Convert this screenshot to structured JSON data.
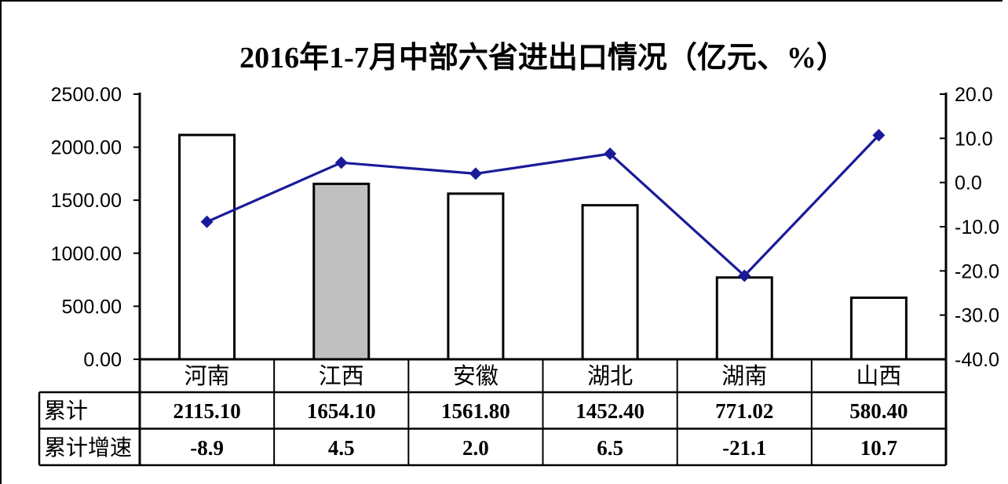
{
  "chart_data": {
    "type": "bar",
    "combo": "bar+line",
    "title": "2016年1-7月中部六省进出口情况（亿元、%）",
    "categories": [
      "河南",
      "江西",
      "安徽",
      "湖北",
      "湖南",
      "山西"
    ],
    "series": [
      {
        "name": "累计",
        "type": "bar",
        "axis": "left",
        "values": [
          2115.1,
          1654.1,
          1561.8,
          1452.4,
          771.02,
          580.4
        ]
      },
      {
        "name": "累计增速",
        "type": "line",
        "axis": "right",
        "values": [
          -8.9,
          4.5,
          2.0,
          6.5,
          -21.1,
          10.7
        ]
      }
    ],
    "left_axis": {
      "min": 0,
      "max": 2500,
      "step": 500,
      "tick_labels": [
        "0.00",
        "500.00",
        "1000.00",
        "1500.00",
        "2000.00",
        "2500.00"
      ]
    },
    "right_axis": {
      "min": -40,
      "max": 20,
      "step": 10,
      "tick_labels": [
        "-40.0",
        "-30.0",
        "-20.0",
        "-10.0",
        "0.0",
        "10.0",
        "20.0"
      ]
    },
    "highlighted_category": "江西",
    "grid": false,
    "legend": "none",
    "colors": {
      "bar_fill": "#ffffff",
      "bar_fill_highlight": "#c0c0c0",
      "bar_stroke": "#000000",
      "line": "#1a1a99",
      "marker": "#1a1a99",
      "table_border": "#000000"
    },
    "data_table": {
      "rows": [
        {
          "label": "累计",
          "values": [
            "2115.10",
            "1654.10",
            "1561.80",
            "1452.40",
            "771.02",
            "580.40"
          ]
        },
        {
          "label": "累计增速",
          "values": [
            "-8.9",
            "4.5",
            "2.0",
            "6.5",
            "-21.1",
            "10.7"
          ]
        }
      ]
    }
  }
}
